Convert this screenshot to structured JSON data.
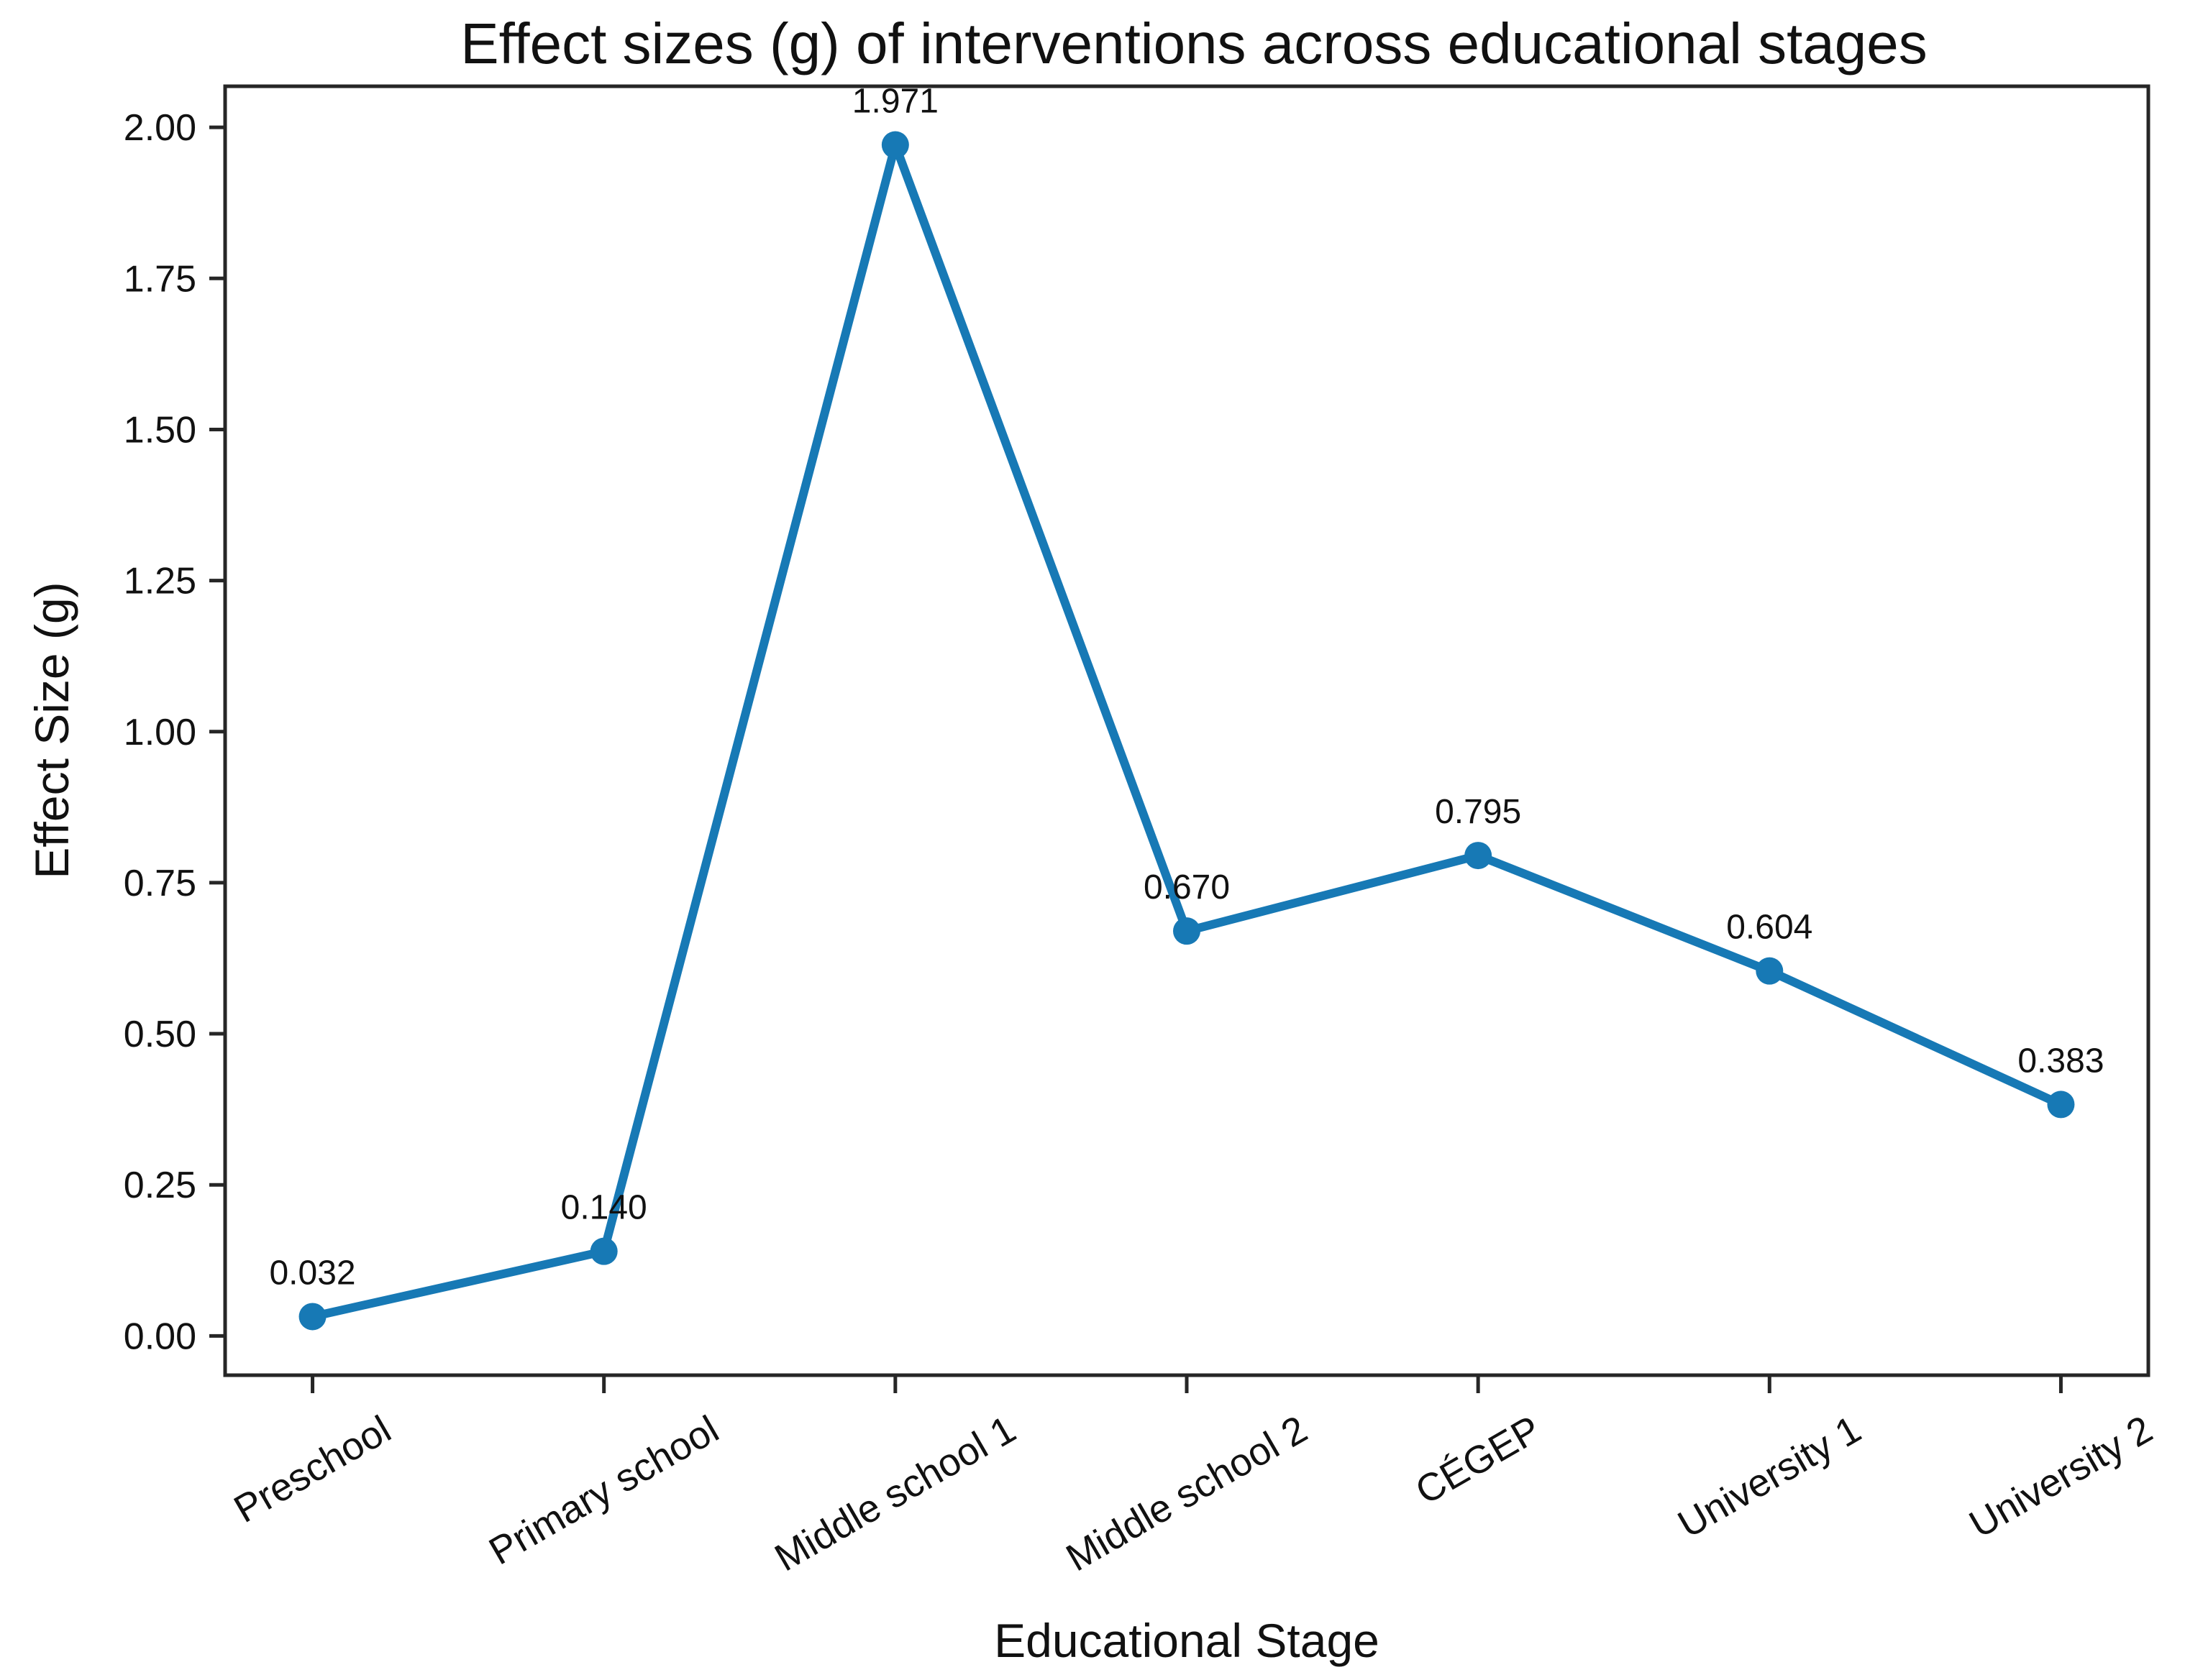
{
  "figure": {
    "background": "#ffffff"
  },
  "chart_data": {
    "type": "line",
    "title": "Effect sizes (g) of interventions across educational stages",
    "xlabel": "Educational Stage",
    "ylabel": "Effect Size (g)",
    "categories": [
      "Preschool",
      "Primary school",
      "Middle school 1",
      "Middle school 2",
      "CÉGEP",
      "University 1",
      "University 2"
    ],
    "values": [
      0.032,
      0.14,
      1.971,
      0.67,
      0.795,
      0.604,
      0.383
    ],
    "point_labels": [
      "0.032",
      "0.140",
      "1.971",
      "0.670",
      "0.795",
      "0.604",
      "0.383"
    ],
    "yticks": [
      0.0,
      0.25,
      0.5,
      0.75,
      1.0,
      1.25,
      1.5,
      1.75,
      2.0
    ],
    "ytick_labels": [
      "0.00",
      "0.25",
      "0.50",
      "0.75",
      "1.00",
      "1.25",
      "1.50",
      "1.75",
      "2.00"
    ],
    "ylim": [
      -0.065,
      2.068
    ],
    "xlim": [
      -0.3,
      6.3
    ],
    "x_tick_rotation_deg": 30,
    "grid": false,
    "legend": "none",
    "marker": "circle",
    "line_color": "#1779b5",
    "marker_color": "#1779b5",
    "axis_color": "#262626",
    "text_color": "#111111"
  }
}
